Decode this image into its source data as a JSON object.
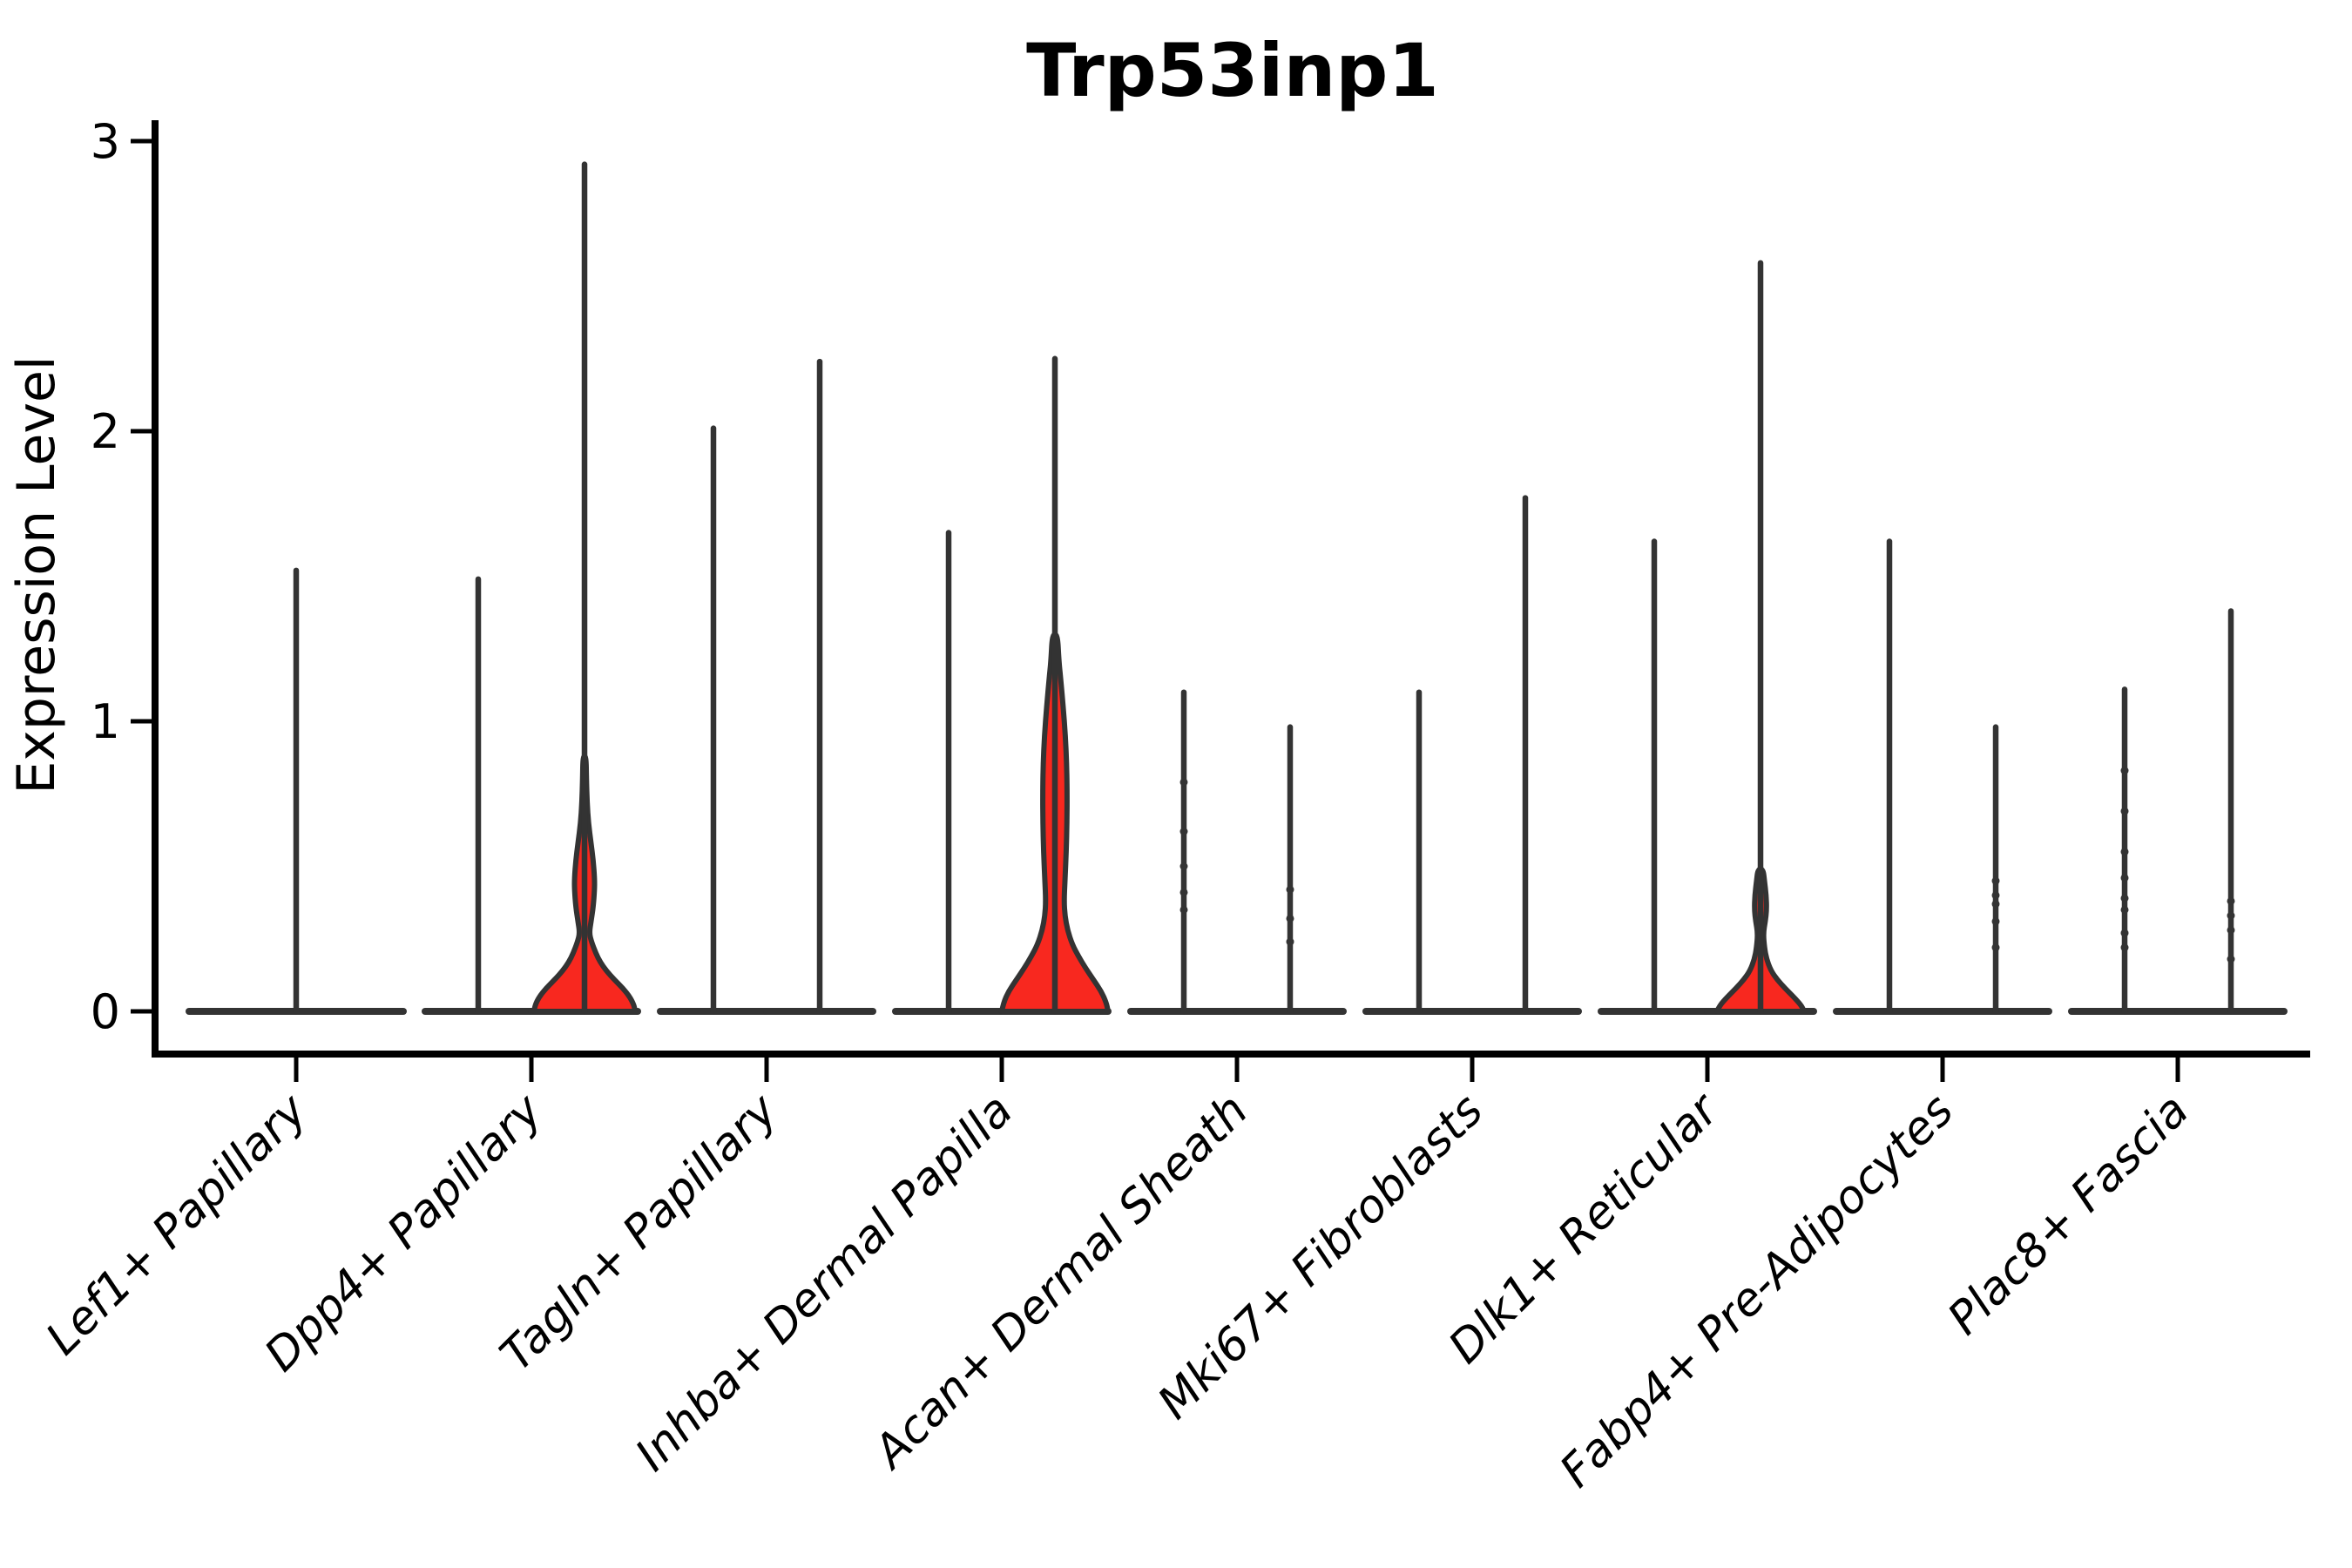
{
  "chart_data": {
    "type": "violin",
    "title": "Trp53inp1",
    "ylabel": "Expression Level",
    "xlabel": "",
    "ylim": [
      0,
      3
    ],
    "yticks": [
      "0",
      "1",
      "2",
      "3"
    ],
    "grid": false,
    "legend": null,
    "categories": [
      "Lef1+ Papillary",
      "Dpp4+ Papillary",
      "Tagln+ Papillary",
      "Inhba+ Dermal Papilla",
      "Acan+ Dermal Sheath",
      "Mki67+ Fibroblasts",
      "Dlk1+ Reticular",
      "Fabp4+ Pre-Adipocytes",
      "Plac8+ Fascia"
    ],
    "series": [
      {
        "category": "Lef1+ Papillary",
        "violins": [
          {
            "dx": 0,
            "base_half": 123,
            "max": 1.52,
            "body": null,
            "dots": []
          }
        ]
      },
      {
        "category": "Dpp4+ Papillary",
        "violins": [
          {
            "dx": -61,
            "base_half": 61,
            "max": 1.49,
            "body": null,
            "dots": []
          },
          {
            "dx": 61,
            "base_half": 61,
            "max": 2.92,
            "body": [
              [
                0,
                58
              ],
              [
                0.02,
                57
              ],
              [
                0.05,
                52
              ],
              [
                0.08,
                44
              ],
              [
                0.11,
                34
              ],
              [
                0.14,
                25
              ],
              [
                0.17,
                18
              ],
              [
                0.2,
                13
              ],
              [
                0.24,
                8
              ],
              [
                0.27,
                5.5
              ],
              [
                0.31,
                7.5
              ],
              [
                0.36,
                10
              ],
              [
                0.42,
                11.5
              ],
              [
                0.46,
                11.5
              ],
              [
                0.52,
                10
              ],
              [
                0.58,
                7.5
              ],
              [
                0.65,
                4.5
              ],
              [
                0.72,
                3
              ],
              [
                0.8,
                2.2
              ],
              [
                0.88,
                1.8
              ]
            ],
            "dots": []
          }
        ]
      },
      {
        "category": "Tagln+ Papillary",
        "violins": [
          {
            "dx": -61,
            "base_half": 61,
            "max": 2.01,
            "body": null,
            "dots": []
          },
          {
            "dx": 61,
            "base_half": 61,
            "max": 2.24,
            "body": null,
            "dots": []
          }
        ]
      },
      {
        "category": "Inhba+ Dermal Papilla",
        "violins": [
          {
            "dx": -61,
            "base_half": 61,
            "max": 1.65,
            "body": null,
            "dots": []
          },
          {
            "dx": 61,
            "base_half": 61,
            "max": 2.25,
            "body": [
              [
                0,
                61
              ],
              [
                0.03,
                59
              ],
              [
                0.07,
                53
              ],
              [
                0.11,
                44
              ],
              [
                0.15,
                35
              ],
              [
                0.19,
                27
              ],
              [
                0.23,
                20
              ],
              [
                0.28,
                14.5
              ],
              [
                0.33,
                11.5
              ],
              [
                0.38,
                10.5
              ],
              [
                0.45,
                11.5
              ],
              [
                0.55,
                13
              ],
              [
                0.65,
                13.8
              ],
              [
                0.75,
                14
              ],
              [
                0.85,
                13.5
              ],
              [
                0.95,
                12
              ],
              [
                1.05,
                9.5
              ],
              [
                1.15,
                6.5
              ],
              [
                1.21,
                4.5
              ],
              [
                1.3,
                3
              ]
            ],
            "dots": []
          }
        ]
      },
      {
        "category": "Acan+ Dermal Sheath",
        "violins": [
          {
            "dx": -61,
            "base_half": 61,
            "max": 1.1,
            "body": null,
            "dots": [
              0.79,
              0.62,
              0.5,
              0.41,
              0.35
            ]
          },
          {
            "dx": 61,
            "base_half": 61,
            "max": 0.98,
            "body": null,
            "dots": [
              0.42,
              0.32,
              0.24
            ]
          }
        ]
      },
      {
        "category": "Mki67+ Fibroblasts",
        "violins": [
          {
            "dx": -61,
            "base_half": 61,
            "max": 1.1,
            "body": null,
            "dots": []
          },
          {
            "dx": 61,
            "base_half": 61,
            "max": 1.77,
            "body": null,
            "dots": []
          }
        ]
      },
      {
        "category": "Dlk1+ Reticular",
        "violins": [
          {
            "dx": -61,
            "base_half": 61,
            "max": 1.62,
            "body": null,
            "dots": []
          },
          {
            "dx": 61,
            "base_half": 61,
            "max": 2.58,
            "body": [
              [
                0,
                50
              ],
              [
                0.02,
                47
              ],
              [
                0.05,
                38
              ],
              [
                0.08,
                28
              ],
              [
                0.11,
                19
              ],
              [
                0.14,
                12
              ],
              [
                0.18,
                7
              ],
              [
                0.22,
                4.5
              ],
              [
                0.27,
                3.2
              ],
              [
                0.31,
                5.5
              ],
              [
                0.35,
                7
              ],
              [
                0.4,
                6.5
              ],
              [
                0.45,
                4.5
              ],
              [
                0.49,
                3
              ]
            ],
            "dots": []
          }
        ]
      },
      {
        "category": "Fabp4+ Pre-Adipocytes",
        "violins": [
          {
            "dx": -61,
            "base_half": 61,
            "max": 1.62,
            "body": null,
            "dots": []
          },
          {
            "dx": 61,
            "base_half": 61,
            "max": 0.98,
            "body": null,
            "dots": [
              0.45,
              0.4,
              0.37,
              0.31,
              0.22
            ]
          }
        ]
      },
      {
        "category": "Plac8+ Fascia",
        "violins": [
          {
            "dx": -61,
            "base_half": 61,
            "max": 1.11,
            "body": null,
            "dots": [
              0.83,
              0.69,
              0.55,
              0.46,
              0.39,
              0.35,
              0.27,
              0.22
            ]
          },
          {
            "dx": 61,
            "base_half": 61,
            "max": 1.38,
            "body": null,
            "dots": [
              0.38,
              0.33,
              0.28,
              0.18
            ]
          }
        ]
      }
    ],
    "style": {
      "violin_fill": "#F8281F",
      "violin_stroke": "#333333",
      "axis_color": "#000000",
      "background": "#FFFFFF"
    }
  }
}
